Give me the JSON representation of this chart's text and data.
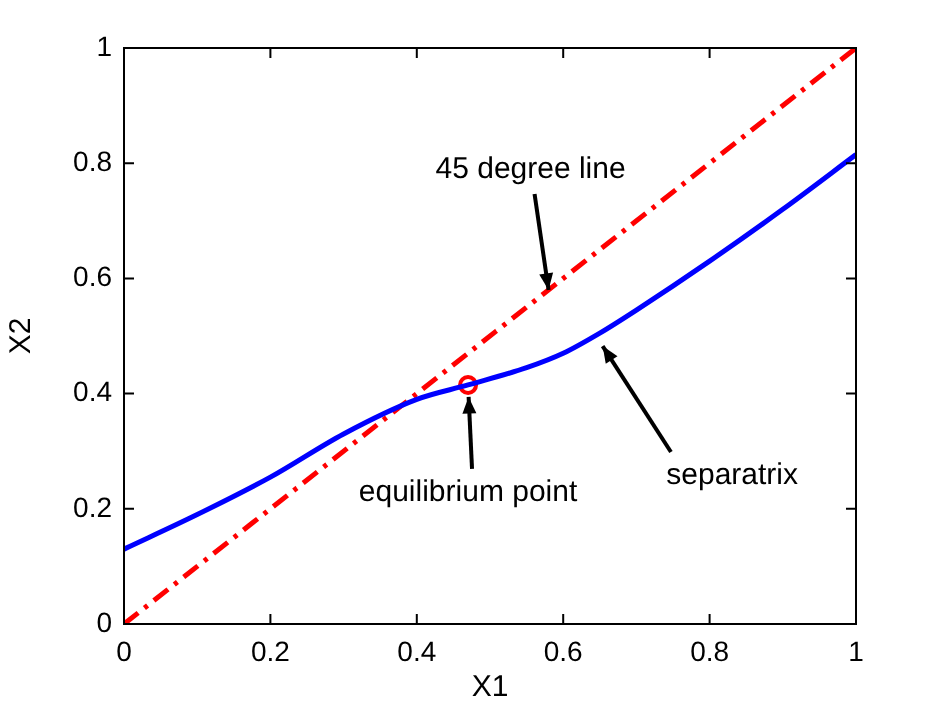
{
  "chart_data": {
    "type": "line",
    "xlabel": "X1",
    "ylabel": "X2",
    "x": [
      0,
      0.1,
      0.2,
      0.3,
      0.4,
      0.47,
      0.55,
      0.6,
      0.65,
      0.7,
      0.8,
      0.9,
      1
    ],
    "series": [
      {
        "color": "#0000ff",
        "values": [
          0.13,
          0.19,
          0.255,
          0.33,
          0.39,
          0.415,
          0.445,
          0.47,
          0.505,
          0.545,
          0.63,
          0.72,
          0.815
        ],
        "line_style": "solid",
        "marker": "none"
      },
      {
        "color": "#ff0000",
        "x": [
          0,
          1
        ],
        "values": [
          0,
          1
        ],
        "line_style": "dashed",
        "marker": "none"
      },
      {
        "type": "scatter",
        "color": "#ff0000",
        "x": [
          0.47
        ],
        "values": [
          0.415
        ],
        "marker": "circle"
      }
    ],
    "xlim": [
      0,
      1
    ],
    "ylim": [
      0,
      1
    ],
    "xticks": [
      0,
      0.2,
      0.4,
      0.6,
      0.8,
      1
    ],
    "yticks": [
      0,
      0.2,
      0.4,
      0.6,
      0.8,
      1
    ],
    "grid": false,
    "legend": false,
    "annotations": [
      {
        "text": "45 degree line",
        "x": 0.58,
        "y": 0.58
      },
      {
        "text": "separatrix",
        "x": 0.645,
        "y": 0.5
      },
      {
        "text": "equilibrium point",
        "x": 0.47,
        "y": 0.415
      }
    ]
  }
}
